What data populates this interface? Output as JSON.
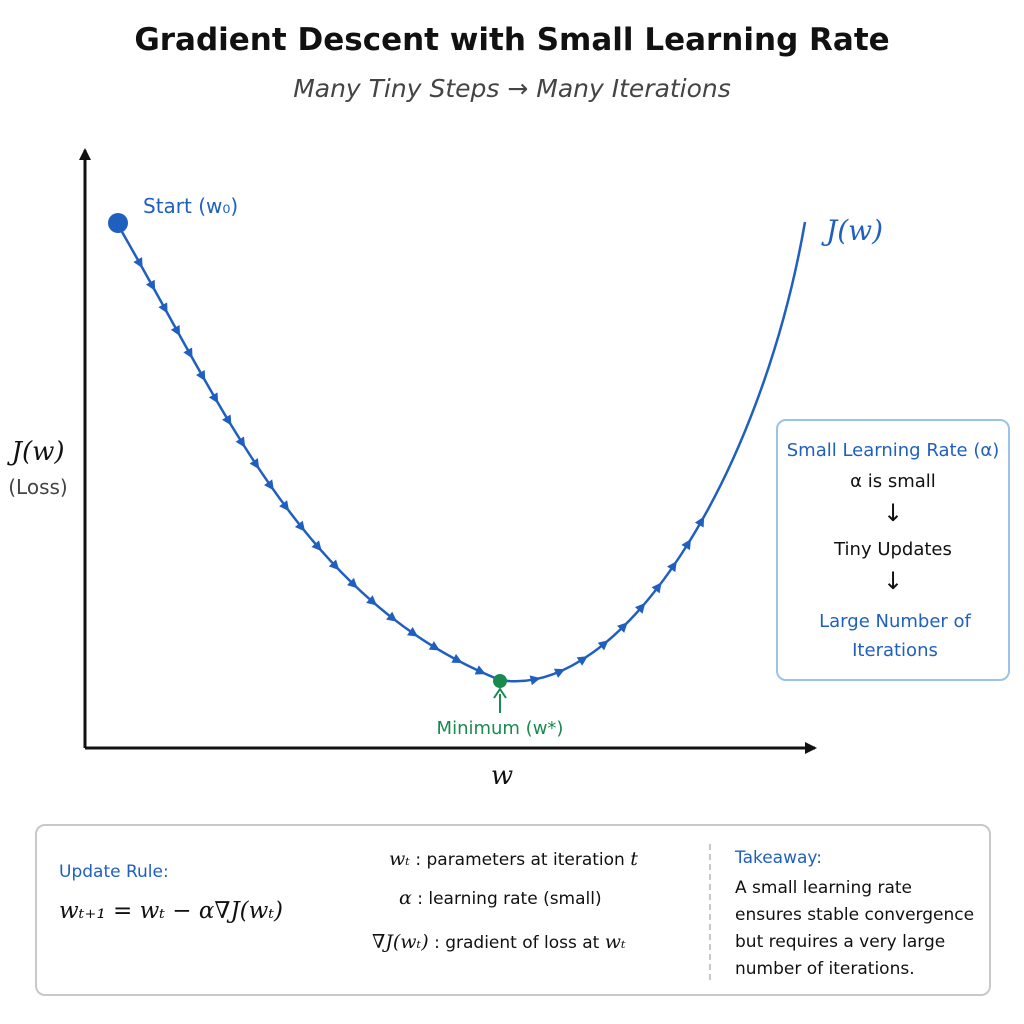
{
  "title": "Gradient Descent with Small Learning Rate",
  "subtitle": "Many Tiny Steps → Many Iterations",
  "plot": {
    "y_axis_label": "J(w)",
    "y_axis_sublabel": "(Loss)",
    "x_axis_label": "w",
    "curve_label": "J(w)",
    "start_label": "Start (w₀)",
    "minimum_label": "Minimum (w*)",
    "curve_color": "#1f5fbf",
    "minimum_color": "#1a8a50"
  },
  "learning_rate_box": {
    "title": "Small Learning Rate (α)",
    "line1": "α is small",
    "arrow": "↓",
    "line2": "Tiny Updates",
    "line3": "Large Number of Iterations"
  },
  "info": {
    "update_rule_label": "Update Rule:",
    "update_rule": "wₜ₊₁ = wₜ − α∇J(wₜ)",
    "definitions": [
      {
        "symbol": "wₜ",
        "text": " : parameters at iteration ",
        "tail": "t"
      },
      {
        "symbol": "α",
        "text": " : learning rate (small)",
        "tail": ""
      },
      {
        "symbol": "∇J(wₜ)",
        "text": " : gradient of loss at ",
        "tail": "wₜ"
      }
    ],
    "takeaway_label": "Takeaway:",
    "takeaway_text": "A small learning rate ensures stable convergence but requires a very large number of iterations."
  }
}
